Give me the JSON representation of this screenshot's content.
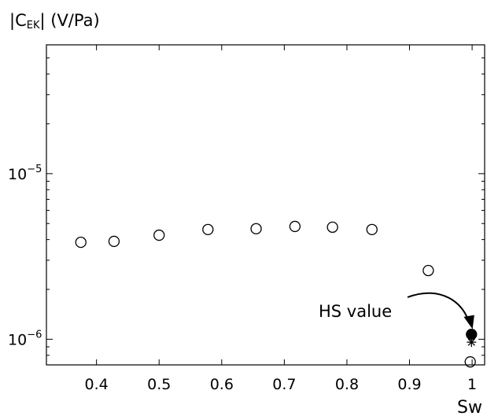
{
  "chart_data": {
    "type": "scatter",
    "title": "",
    "ylabel": {
      "prefix": "|C",
      "subscript": "EK",
      "suffix": "| (V/Pa)"
    },
    "xlabel": "Sw",
    "x_scale": "linear",
    "y_scale": "log",
    "xlim": [
      0.32,
      1.02
    ],
    "ylim": [
      7e-07,
      6e-05
    ],
    "x_ticks": [
      0.4,
      0.5,
      0.6,
      0.7,
      0.8,
      0.9,
      1.0
    ],
    "x_tick_labels": [
      "0.4",
      "0.5",
      "0.6",
      "0.7",
      "0.8",
      "0.9",
      "1"
    ],
    "y_ticks": [
      1e-06,
      1e-05
    ],
    "y_tick_labels": [
      {
        "base": "10",
        "exp": "−6"
      },
      {
        "base": "10",
        "exp": "−5"
      }
    ],
    "grid": false,
    "series": [
      {
        "marker": "open-circle",
        "x": [
          0.375,
          0.428,
          0.5,
          0.578,
          0.655,
          0.717,
          0.777,
          0.84,
          0.93,
          0.997
        ],
        "y": [
          3.85e-06,
          3.9e-06,
          4.25e-06,
          4.6e-06,
          4.65e-06,
          4.8e-06,
          4.75e-06,
          4.6e-06,
          2.6e-06,
          7.3e-07
        ]
      },
      {
        "marker": "filled-circle",
        "x": [
          0.999
        ],
        "y": [
          1.07e-06
        ]
      },
      {
        "marker": "asterisk",
        "x": [
          0.999
        ],
        "y": [
          9.6e-07
        ]
      }
    ],
    "annotations": [
      {
        "text": "HS value",
        "points_to": {
          "x": 0.999,
          "y": 1.07e-06
        }
      }
    ]
  }
}
